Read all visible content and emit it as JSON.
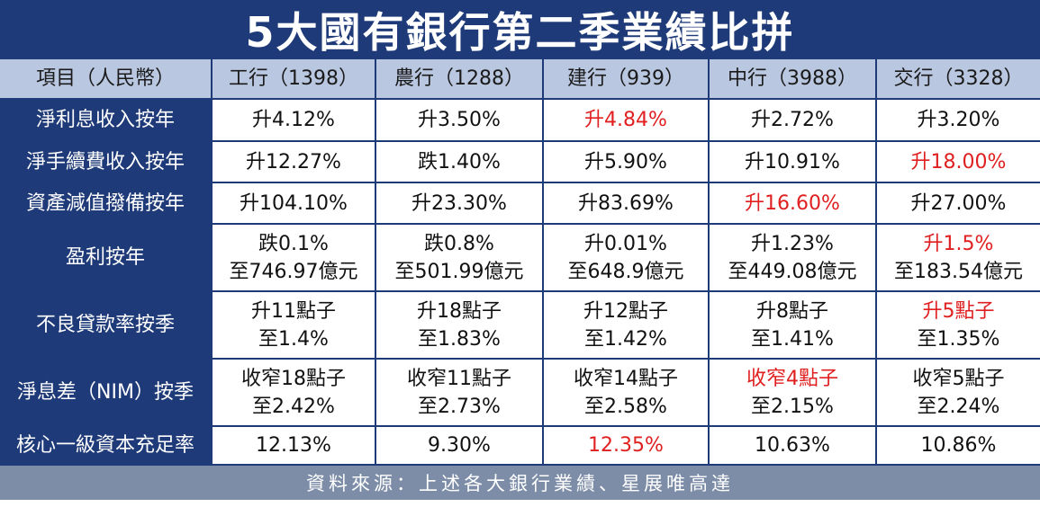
{
  "title": "5大國有銀行第二季業績比拼",
  "header": {
    "item_label": "項目（人民幣）",
    "banks": [
      "工行（1398）",
      "農行（1288）",
      "建行（939）",
      "中行（3988）",
      "交行（3328）"
    ]
  },
  "rows": [
    {
      "label": "淨利息收入按年",
      "cells": [
        {
          "lines": [
            "升4.12%"
          ],
          "highlight": false
        },
        {
          "lines": [
            "升3.50%"
          ],
          "highlight": false
        },
        {
          "lines": [
            "升4.84%"
          ],
          "highlight": true
        },
        {
          "lines": [
            "升2.72%"
          ],
          "highlight": false
        },
        {
          "lines": [
            "升3.20%"
          ],
          "highlight": false
        }
      ]
    },
    {
      "label": "淨手續費收入按年",
      "cells": [
        {
          "lines": [
            "升12.27%"
          ],
          "highlight": false
        },
        {
          "lines": [
            "跌1.40%"
          ],
          "highlight": false
        },
        {
          "lines": [
            "升5.90%"
          ],
          "highlight": false
        },
        {
          "lines": [
            "升10.91%"
          ],
          "highlight": false
        },
        {
          "lines": [
            "升18.00%"
          ],
          "highlight": true
        }
      ]
    },
    {
      "label": "資產減值撥備按年",
      "cells": [
        {
          "lines": [
            "升104.10%"
          ],
          "highlight": false
        },
        {
          "lines": [
            "升23.30%"
          ],
          "highlight": false
        },
        {
          "lines": [
            "升83.69%"
          ],
          "highlight": false
        },
        {
          "lines": [
            "升16.60%"
          ],
          "highlight": true
        },
        {
          "lines": [
            "升27.00%"
          ],
          "highlight": false
        }
      ]
    },
    {
      "label": "盈利按年",
      "cells": [
        {
          "lines": [
            "跌0.1%",
            "至746.97億元"
          ],
          "highlight": false
        },
        {
          "lines": [
            "跌0.8%",
            "至501.99億元"
          ],
          "highlight": false
        },
        {
          "lines": [
            "升0.01%",
            "至648.9億元"
          ],
          "highlight": false
        },
        {
          "lines": [
            "升1.23%",
            "至449.08億元"
          ],
          "highlight": false
        },
        {
          "lines": [
            "升1.5%",
            "至183.54億元"
          ],
          "highlight": "first"
        }
      ]
    },
    {
      "label": "不良貸款率按季",
      "cells": [
        {
          "lines": [
            "升11點子",
            "至1.4%"
          ],
          "highlight": false
        },
        {
          "lines": [
            "升18點子",
            "至1.83%"
          ],
          "highlight": false
        },
        {
          "lines": [
            "升12點子",
            "至1.42%"
          ],
          "highlight": false
        },
        {
          "lines": [
            "升8點子",
            "至1.41%"
          ],
          "highlight": false
        },
        {
          "lines": [
            "升5點子",
            "至1.35%"
          ],
          "highlight": "first"
        }
      ]
    },
    {
      "label": "淨息差（NIM）按季",
      "cells": [
        {
          "lines": [
            "收窄18點子",
            "至2.42%"
          ],
          "highlight": false
        },
        {
          "lines": [
            "收窄11點子",
            "至2.73%"
          ],
          "highlight": false
        },
        {
          "lines": [
            "收窄14點子",
            "至2.58%"
          ],
          "highlight": false
        },
        {
          "lines": [
            "收窄4點子",
            "至2.15%"
          ],
          "highlight": "first"
        },
        {
          "lines": [
            "收窄5點子",
            "至2.24%"
          ],
          "highlight": false
        }
      ]
    },
    {
      "label": "核心一級資本充足率",
      "cells": [
        {
          "lines": [
            "12.13%"
          ],
          "highlight": false
        },
        {
          "lines": [
            "9.30%"
          ],
          "highlight": false
        },
        {
          "lines": [
            "12.35%"
          ],
          "highlight": true
        },
        {
          "lines": [
            "10.63%"
          ],
          "highlight": false
        },
        {
          "lines": [
            "10.86%"
          ],
          "highlight": false
        }
      ]
    }
  ],
  "footer": {
    "source": "資料來源：上述各大銀行業績、星展唯高達"
  },
  "colors": {
    "navy": "#1e3a78",
    "header_bg": "#b9c7e0",
    "highlight_red": "#e02020",
    "footer_bg": "#7d8da8"
  }
}
